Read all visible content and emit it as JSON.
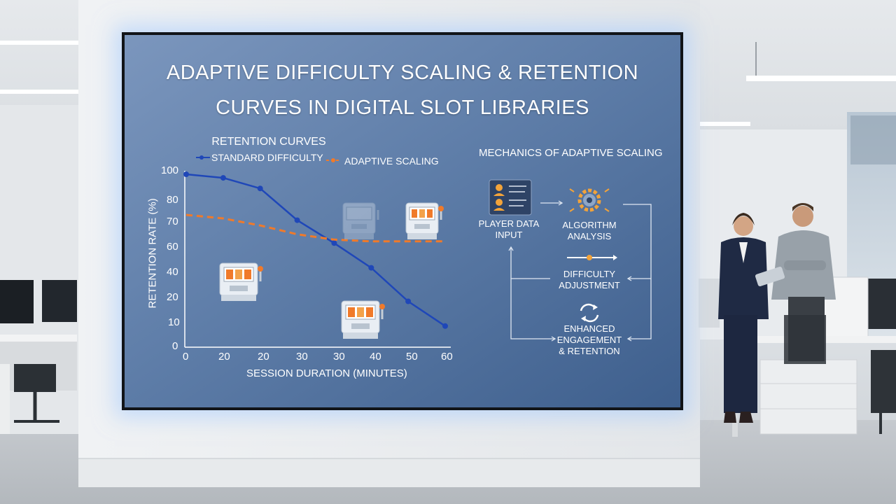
{
  "screen": {
    "title_line1": "ADAPTIVE DIFFICULTY SCALING & RETENTION",
    "title_line2": "CURVES IN DIGITAL SLOT LIBRARIES"
  },
  "chart_data": {
    "type": "line",
    "title": "RETENTION CURVES",
    "xlabel": "SESSION DURATION (MINUTES)",
    "ylabel": "RETENTION RATE (%)",
    "x_tick_labels": [
      "0",
      "20",
      "20",
      "30",
      "30",
      "40",
      "50",
      "60"
    ],
    "y_tick_labels": [
      "100",
      "80",
      "70",
      "60",
      "40",
      "20",
      "10",
      "0"
    ],
    "legend_position": "top",
    "grid": false,
    "series": [
      {
        "name": "STANDARD DIFFICULTY",
        "color": "#1f47b8",
        "style": "solid-with-markers",
        "values": [
          98,
          96,
          90,
          72,
          59,
          45,
          26,
          12
        ]
      },
      {
        "name": "ADAPTIVE SCALING",
        "color": "#f07a2a",
        "style": "dashed-with-markers",
        "values": [
          75,
          73,
          69,
          64,
          61,
          60,
          60,
          60
        ]
      }
    ]
  },
  "mechanics": {
    "title": "MECHANICS OF ADAPTIVE SCALING",
    "nodes": [
      {
        "label_line1": "PLAYER DATA",
        "label_line2": "INPUT",
        "icon": "user-data-icon"
      },
      {
        "label_line1": "ALGORITHM",
        "label_line2": "ANALYSIS",
        "icon": "gear-icon"
      },
      {
        "label_line1": "DIFFICULTY",
        "label_line2": "ADJUSTMENT",
        "icon": "slider-icon"
      },
      {
        "label_line1": "ENHANCED",
        "label_line2": "ENGAGEMENT",
        "label_line3": "& RETENTION",
        "icon": "refresh-icon"
      }
    ]
  },
  "colors": {
    "screen_bg": "#5b7aa6",
    "accent_orange": "#f07a2a",
    "accent_blue": "#1f47b8"
  }
}
